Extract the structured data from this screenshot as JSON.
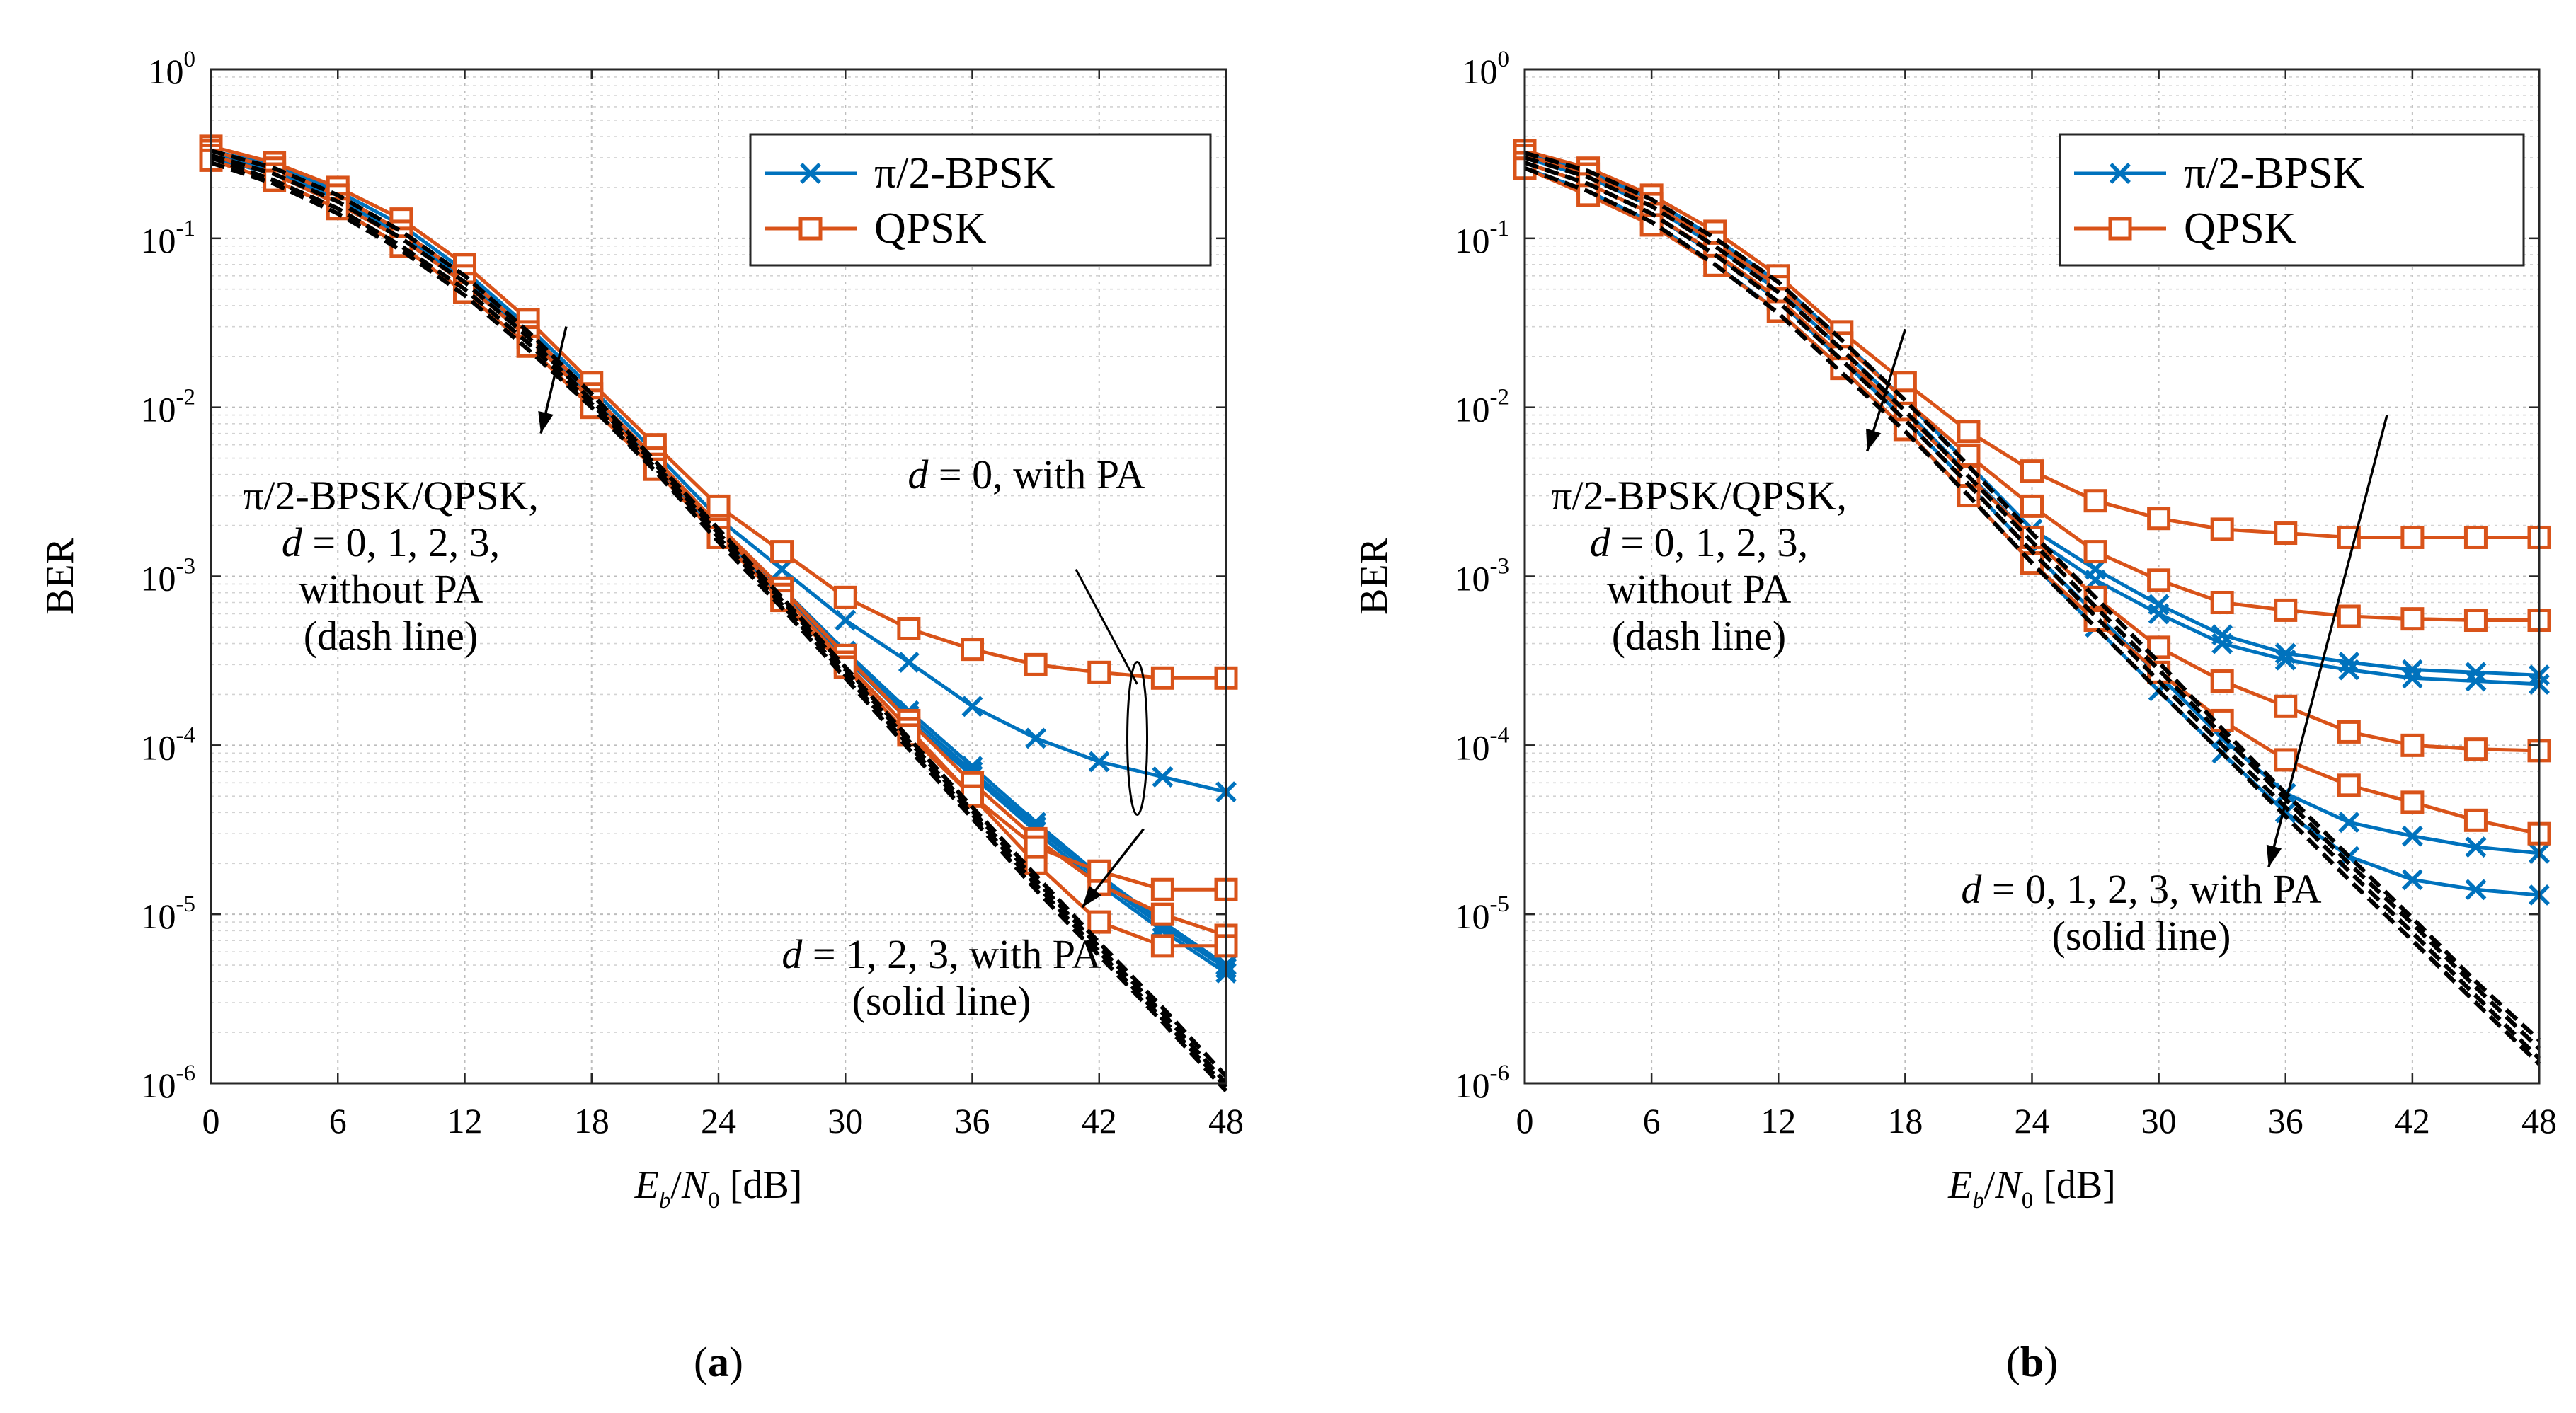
{
  "chart_data": [
    {
      "type": "line",
      "id": "a",
      "sublabel": "a",
      "xlabel": {
        "var": "E",
        "sub": "b",
        "sep": "/",
        "var2": "N",
        "sub2": "0",
        "unit": " [dB]"
      },
      "ylabel": "BER",
      "xlim": [
        0,
        48
      ],
      "ylim_log10": [
        -6,
        0
      ],
      "xticks": [
        0,
        6,
        12,
        18,
        24,
        30,
        36,
        42,
        48
      ],
      "yticks": [
        {
          "base": "10",
          "exp": "0"
        },
        {
          "base": "10",
          "exp": "-1"
        },
        {
          "base": "10",
          "exp": "-2"
        },
        {
          "base": "10",
          "exp": "-3"
        },
        {
          "base": "10",
          "exp": "-4"
        },
        {
          "base": "10",
          "exp": "-5"
        },
        {
          "base": "10",
          "exp": "-6"
        }
      ],
      "grid": true,
      "legend": {
        "position": "top-right",
        "entries": [
          {
            "label": "π/2-BPSK",
            "color": "#0072BD",
            "marker": "x"
          },
          {
            "label": "QPSK",
            "color": "#D95319",
            "marker": "square"
          }
        ]
      },
      "x": [
        0,
        3,
        6,
        9,
        12,
        15,
        18,
        21,
        24,
        27,
        30,
        33,
        36,
        39,
        42,
        45,
        48
      ],
      "series": [
        {
          "name": "π/2-BPSK, no PA, d=0",
          "style": "dash",
          "color": "#000000",
          "values": [
            0.33,
            0.26,
            0.18,
            0.11,
            0.06,
            0.028,
            0.012,
            0.0048,
            0.0019,
            0.00075,
            0.00029,
            0.00011,
            4.3e-05,
            1.7e-05,
            6.8e-06,
            2.8e-06,
            1.1e-06
          ]
        },
        {
          "name": "π/2-BPSK, no PA, d=1",
          "style": "dash",
          "color": "#000000",
          "values": [
            0.31,
            0.24,
            0.165,
            0.1,
            0.055,
            0.026,
            0.011,
            0.0046,
            0.0018,
            0.00072,
            0.00028,
            0.000106,
            4.1e-05,
            1.6e-05,
            6.4e-06,
            2.6e-06,
            1e-06
          ]
        },
        {
          "name": "π/2-BPSK, no PA, d=2",
          "style": "dash",
          "color": "#000000",
          "values": [
            0.3,
            0.22,
            0.15,
            0.09,
            0.05,
            0.024,
            0.0105,
            0.0044,
            0.0017,
            0.00068,
            0.00026,
            0.0001,
            3.9e-05,
            1.5e-05,
            6e-06,
            2.4e-06,
            9.5e-07
          ]
        },
        {
          "name": "π/2-BPSK, no PA, d=3",
          "style": "dash",
          "color": "#000000",
          "values": [
            0.28,
            0.21,
            0.14,
            0.085,
            0.046,
            0.022,
            0.01,
            0.0042,
            0.0016,
            0.00065,
            0.00025,
            9.5e-05,
            3.7e-05,
            1.4e-05,
            5.7e-06,
            2.3e-06,
            9e-07
          ]
        },
        {
          "name": "π/2-BPSK, PA, d=0",
          "style": "solid",
          "marker": "x",
          "color": "#0072BD",
          "values": [
            0.33,
            0.27,
            0.19,
            0.12,
            0.064,
            0.03,
            0.013,
            0.0054,
            0.0022,
            0.0011,
            0.00055,
            0.00031,
            0.00017,
            0.00011,
            8e-05,
            6.5e-05,
            5.3e-05
          ]
        },
        {
          "name": "π/2-BPSK, PA, d=1",
          "style": "solid",
          "marker": "x",
          "color": "#0072BD",
          "values": [
            0.32,
            0.26,
            0.18,
            0.11,
            0.06,
            0.028,
            0.012,
            0.005,
            0.002,
            0.00085,
            0.00036,
            0.00016,
            7.5e-05,
            3.5e-05,
            1.7e-05,
            9e-06,
            5e-06
          ]
        },
        {
          "name": "π/2-BPSK, PA, d=2",
          "style": "solid",
          "marker": "x",
          "color": "#0072BD",
          "values": [
            0.31,
            0.25,
            0.17,
            0.105,
            0.057,
            0.027,
            0.0115,
            0.0048,
            0.0019,
            0.0008,
            0.00034,
            0.00015,
            7e-05,
            3.3e-05,
            1.6e-05,
            8.5e-06,
            4.8e-06
          ]
        },
        {
          "name": "π/2-BPSK, PA, d=3",
          "style": "solid",
          "marker": "x",
          "color": "#0072BD",
          "values": [
            0.3,
            0.24,
            0.16,
            0.1,
            0.054,
            0.026,
            0.011,
            0.0046,
            0.0018,
            0.00077,
            0.00033,
            0.00014,
            6.6e-05,
            3.1e-05,
            1.5e-05,
            8e-06,
            4.5e-06
          ]
        },
        {
          "name": "QPSK, PA, d=0",
          "style": "solid",
          "marker": "square",
          "color": "#D95319",
          "values": [
            0.35,
            0.28,
            0.2,
            0.13,
            0.07,
            0.033,
            0.014,
            0.006,
            0.0026,
            0.0014,
            0.00075,
            0.00049,
            0.00037,
            0.0003,
            0.00027,
            0.00025,
            0.00025
          ]
        },
        {
          "name": "QPSK, PA, d=1",
          "style": "solid",
          "marker": "square",
          "color": "#D95319",
          "values": [
            0.33,
            0.26,
            0.18,
            0.11,
            0.06,
            0.028,
            0.012,
            0.005,
            0.002,
            0.00085,
            0.00034,
            0.00014,
            6e-05,
            2.8e-05,
            1.5e-05,
            1e-05,
            7.5e-06
          ]
        },
        {
          "name": "QPSK, PA, d=2",
          "style": "solid",
          "marker": "square",
          "color": "#D95319",
          "values": [
            0.31,
            0.24,
            0.16,
            0.1,
            0.054,
            0.026,
            0.011,
            0.0046,
            0.0019,
            0.00078,
            0.00031,
            0.000125,
            5e-05,
            2e-05,
            9e-06,
            6.5e-06,
            6.5e-06
          ]
        },
        {
          "name": "QPSK, PA, d=3",
          "style": "solid",
          "marker": "square",
          "color": "#D95319",
          "values": [
            0.29,
            0.22,
            0.15,
            0.09,
            0.048,
            0.023,
            0.01,
            0.0043,
            0.0017,
            0.00072,
            0.00029,
            0.000115,
            5e-05,
            2.5e-05,
            1.8e-05,
            1.4e-05,
            1.4e-05
          ]
        }
      ],
      "annotations": [
        {
          "id": "nopa",
          "lines": [
            {
              "parts": [
                {
                  "t": "π/2-BPSK/QPSK,",
                  "i": false
                }
              ]
            },
            {
              "parts": [
                {
                  "t": "d",
                  "i": true
                },
                {
                  "t": " = 0, 1, 2, 3,",
                  "i": false
                }
              ]
            },
            {
              "parts": [
                {
                  "t": "without PA",
                  "i": false
                }
              ]
            },
            {
              "parts": [
                {
                  "t": "(dash line)",
                  "i": false
                }
              ]
            }
          ]
        },
        {
          "id": "d0pa",
          "lines": [
            {
              "parts": [
                {
                  "t": "d",
                  "i": true
                },
                {
                  "t": " = 0, with PA",
                  "i": false
                }
              ]
            }
          ]
        },
        {
          "id": "d123pa",
          "lines": [
            {
              "parts": [
                {
                  "t": "d",
                  "i": true
                },
                {
                  "t": " = 1, 2, 3, with PA",
                  "i": false
                }
              ]
            },
            {
              "parts": [
                {
                  "t": "(solid line)",
                  "i": false
                }
              ]
            }
          ]
        }
      ]
    },
    {
      "type": "line",
      "id": "b",
      "sublabel": "b",
      "xlabel": {
        "var": "E",
        "sub": "b",
        "sep": "/",
        "var2": "N",
        "sub2": "0",
        "unit": " [dB]"
      },
      "ylabel": "BER",
      "xlim": [
        0,
        48
      ],
      "ylim_log10": [
        -6,
        0
      ],
      "xticks": [
        0,
        6,
        12,
        18,
        24,
        30,
        36,
        42,
        48
      ],
      "yticks": [
        {
          "base": "10",
          "exp": "0"
        },
        {
          "base": "10",
          "exp": "-1"
        },
        {
          "base": "10",
          "exp": "-2"
        },
        {
          "base": "10",
          "exp": "-3"
        },
        {
          "base": "10",
          "exp": "-4"
        },
        {
          "base": "10",
          "exp": "-5"
        },
        {
          "base": "10",
          "exp": "-6"
        }
      ],
      "grid": true,
      "legend": {
        "position": "top-right",
        "entries": [
          {
            "label": "π/2-BPSK",
            "color": "#0072BD",
            "marker": "x"
          },
          {
            "label": "QPSK",
            "color": "#D95319",
            "marker": "square"
          }
        ]
      },
      "x": [
        0,
        3,
        6,
        9,
        12,
        15,
        18,
        21,
        24,
        27,
        30,
        33,
        36,
        39,
        42,
        45,
        48
      ],
      "series": [
        {
          "name": "π/2-BPSK, no PA, d=0",
          "style": "dash",
          "color": "#000000",
          "values": [
            0.32,
            0.25,
            0.17,
            0.1,
            0.055,
            0.025,
            0.011,
            0.0045,
            0.0018,
            0.00075,
            0.00031,
            0.000125,
            5.2e-05,
            2.2e-05,
            9.5e-06,
            4e-06,
            1.8e-06
          ]
        },
        {
          "name": "π/2-BPSK, no PA, d=1",
          "style": "dash",
          "color": "#000000",
          "values": [
            0.3,
            0.23,
            0.155,
            0.09,
            0.048,
            0.022,
            0.0095,
            0.0039,
            0.0016,
            0.00066,
            0.00028,
            0.000115,
            4.8e-05,
            2e-05,
            8.8e-06,
            3.7e-06,
            1.6e-06
          ]
        },
        {
          "name": "π/2-BPSK, no PA, d=2",
          "style": "dash",
          "color": "#000000",
          "values": [
            0.28,
            0.21,
            0.14,
            0.08,
            0.042,
            0.019,
            0.0084,
            0.0035,
            0.0014,
            0.00058,
            0.00024,
            0.0001,
            4.3e-05,
            1.8e-05,
            7.8e-06,
            3.3e-06,
            1.4e-06
          ]
        },
        {
          "name": "π/2-BPSK, no PA, d=3",
          "style": "dash",
          "color": "#000000",
          "values": [
            0.26,
            0.19,
            0.125,
            0.07,
            0.036,
            0.016,
            0.0072,
            0.003,
            0.0012,
            0.0005,
            0.00021,
            9e-05,
            3.8e-05,
            1.6e-05,
            7e-06,
            3e-06,
            1.3e-06
          ]
        },
        {
          "name": "π/2-BPSK, PA, d=0",
          "style": "solid",
          "marker": "x",
          "color": "#0072BD",
          "values": [
            0.32,
            0.25,
            0.17,
            0.1,
            0.055,
            0.025,
            0.011,
            0.0046,
            0.0019,
            0.0011,
            0.00068,
            0.00045,
            0.00035,
            0.00031,
            0.00028,
            0.00027,
            0.00026
          ]
        },
        {
          "name": "π/2-BPSK, PA, d=1",
          "style": "solid",
          "marker": "x",
          "color": "#0072BD",
          "values": [
            0.3,
            0.23,
            0.155,
            0.09,
            0.049,
            0.022,
            0.0097,
            0.004,
            0.0017,
            0.00095,
            0.0006,
            0.0004,
            0.00032,
            0.00028,
            0.00025,
            0.00024,
            0.00023
          ]
        },
        {
          "name": "π/2-BPSK, PA, d=2",
          "style": "solid",
          "marker": "x",
          "color": "#0072BD",
          "values": [
            0.28,
            0.21,
            0.14,
            0.08,
            0.043,
            0.019,
            0.0085,
            0.0035,
            0.0014,
            0.0006,
            0.00026,
            0.00011,
            5.2e-05,
            3.5e-05,
            2.9e-05,
            2.5e-05,
            2.3e-05
          ]
        },
        {
          "name": "π/2-BPSK, PA, d=3",
          "style": "solid",
          "marker": "x",
          "color": "#0072BD",
          "values": [
            0.26,
            0.19,
            0.125,
            0.07,
            0.037,
            0.017,
            0.0074,
            0.003,
            0.0012,
            0.0005,
            0.00021,
            9e-05,
            4e-05,
            2.2e-05,
            1.6e-05,
            1.4e-05,
            1.3e-05
          ]
        },
        {
          "name": "QPSK, PA, d=0",
          "style": "solid",
          "marker": "square",
          "color": "#D95319",
          "values": [
            0.33,
            0.26,
            0.18,
            0.11,
            0.06,
            0.028,
            0.014,
            0.0072,
            0.0042,
            0.0028,
            0.0022,
            0.0019,
            0.0018,
            0.0017,
            0.0017,
            0.0017,
            0.0017
          ]
        },
        {
          "name": "QPSK, PA, d=1",
          "style": "solid",
          "marker": "square",
          "color": "#D95319",
          "values": [
            0.31,
            0.24,
            0.16,
            0.095,
            0.052,
            0.024,
            0.011,
            0.0052,
            0.0026,
            0.0014,
            0.00095,
            0.0007,
            0.00063,
            0.00058,
            0.00056,
            0.00055,
            0.00055
          ]
        },
        {
          "name": "QPSK, PA, d=2",
          "style": "solid",
          "marker": "square",
          "color": "#D95319",
          "values": [
            0.28,
            0.21,
            0.14,
            0.082,
            0.044,
            0.02,
            0.0092,
            0.0039,
            0.0017,
            0.00075,
            0.00038,
            0.00024,
            0.00017,
            0.00012,
            0.0001,
            9.5e-05,
            9.3e-05
          ]
        },
        {
          "name": "QPSK, PA, d=3",
          "style": "solid",
          "marker": "square",
          "color": "#D95319",
          "values": [
            0.26,
            0.18,
            0.12,
            0.069,
            0.037,
            0.017,
            0.0074,
            0.003,
            0.0012,
            0.00055,
            0.00027,
            0.00014,
            8.2e-05,
            5.8e-05,
            4.6e-05,
            3.6e-05,
            3e-05
          ]
        }
      ],
      "annotations": [
        {
          "id": "nopa",
          "lines": [
            {
              "parts": [
                {
                  "t": "π/2-BPSK/QPSK,",
                  "i": false
                }
              ]
            },
            {
              "parts": [
                {
                  "t": "d",
                  "i": true
                },
                {
                  "t": " = 0, 1, 2, 3,",
                  "i": false
                }
              ]
            },
            {
              "parts": [
                {
                  "t": "without PA",
                  "i": false
                }
              ]
            },
            {
              "parts": [
                {
                  "t": "(dash line)",
                  "i": false
                }
              ]
            }
          ]
        },
        {
          "id": "pa",
          "lines": [
            {
              "parts": [
                {
                  "t": "d",
                  "i": true
                },
                {
                  "t": " = 0, 1, 2, 3, with PA",
                  "i": false
                }
              ]
            },
            {
              "parts": [
                {
                  "t": "(solid line)",
                  "i": false
                }
              ]
            }
          ]
        }
      ]
    }
  ]
}
